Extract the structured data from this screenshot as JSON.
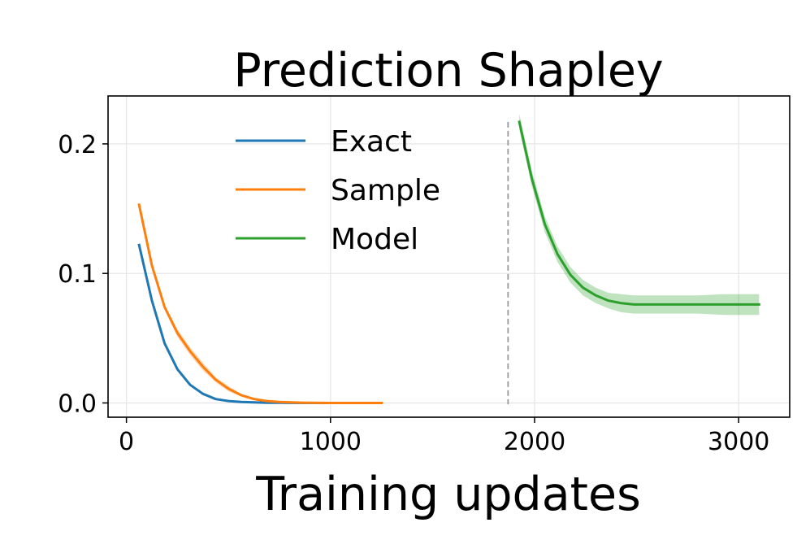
{
  "chart_data": {
    "type": "line",
    "title": "Prediction Shapley",
    "xlabel": "Training updates",
    "ylabel": "",
    "xlim": [
      -90,
      3250
    ],
    "ylim": [
      -0.011,
      0.237
    ],
    "xticks": [
      0,
      1000,
      2000,
      3000
    ],
    "xtick_labels": [
      "0",
      "1000",
      "2000",
      "3000"
    ],
    "yticks": [
      0.0,
      0.1,
      0.2
    ],
    "ytick_labels": [
      "0.0",
      "0.1",
      "0.2"
    ],
    "grid": true,
    "legend_position": "upper-left",
    "vline": {
      "x": 1870,
      "style": "dashed",
      "color": "#999999"
    },
    "series": [
      {
        "name": "Exact",
        "color": "#1f77b4",
        "x": [
          62,
          125,
          187,
          250,
          312,
          375,
          437,
          500,
          562,
          625,
          687,
          750,
          875,
          1000,
          1125,
          1250
        ],
        "y": [
          0.122,
          0.079,
          0.046,
          0.026,
          0.014,
          0.007,
          0.003,
          0.0015,
          0.0008,
          0.0004,
          0.0002,
          0.0001,
          0.0,
          0.0,
          0.0,
          0.0
        ],
        "band": [
          0.001,
          0.001,
          0.001,
          0.001,
          0.001,
          0.001,
          0.0005,
          0.0005,
          0.0,
          0.0,
          0.0,
          0.0,
          0.0,
          0.0,
          0.0,
          0.0
        ]
      },
      {
        "name": "Sample",
        "color": "#ff7f0e",
        "x": [
          62,
          125,
          187,
          250,
          312,
          375,
          437,
          500,
          562,
          625,
          687,
          750,
          875,
          1000,
          1125,
          1250
        ],
        "y": [
          0.153,
          0.106,
          0.074,
          0.054,
          0.04,
          0.028,
          0.018,
          0.011,
          0.006,
          0.003,
          0.0015,
          0.0008,
          0.0002,
          0.0,
          0.0,
          0.0
        ],
        "band": [
          0.002,
          0.002,
          0.002,
          0.003,
          0.003,
          0.003,
          0.002,
          0.002,
          0.001,
          0.001,
          0.0005,
          0.0005,
          0.0,
          0.0,
          0.0,
          0.0
        ]
      },
      {
        "name": "Model",
        "color": "#2ca02c",
        "x": [
          1925,
          1987,
          2050,
          2112,
          2175,
          2237,
          2300,
          2362,
          2425,
          2487,
          2550,
          2675,
          2800,
          2925,
          3100
        ],
        "y": [
          0.217,
          0.173,
          0.138,
          0.115,
          0.099,
          0.089,
          0.083,
          0.079,
          0.077,
          0.076,
          0.076,
          0.076,
          0.076,
          0.076,
          0.076
        ],
        "band": [
          0.006,
          0.006,
          0.006,
          0.006,
          0.006,
          0.006,
          0.006,
          0.006,
          0.007,
          0.007,
          0.007,
          0.007,
          0.007,
          0.008,
          0.008
        ]
      }
    ]
  }
}
